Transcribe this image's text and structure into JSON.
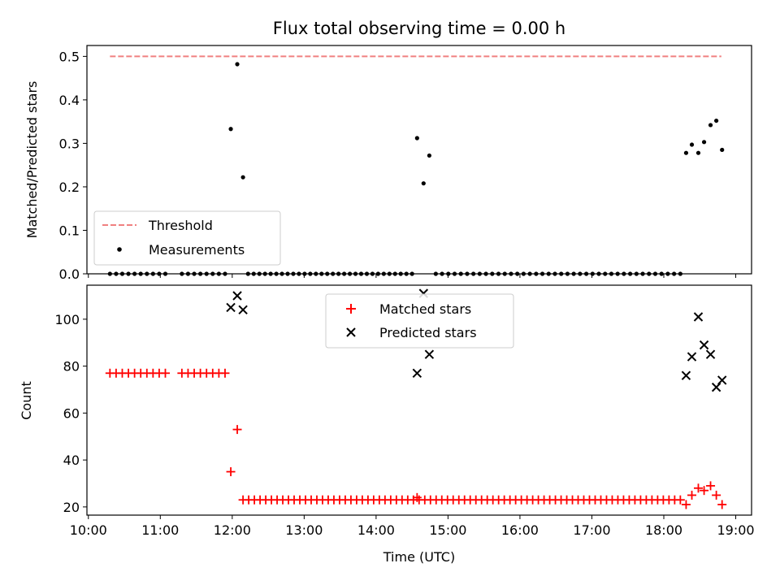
{
  "chart_data": [
    {
      "type": "scatter",
      "title": "Flux total observing time = 0.00 h",
      "ylabel": "Matched/Predicted stars",
      "xlabel": "",
      "xlim": [
        9.98,
        19.22
      ],
      "ylim": [
        0.0,
        0.525
      ],
      "x_ticks": [
        10,
        11,
        12,
        13,
        14,
        15,
        16,
        17,
        18,
        19
      ],
      "y_ticks": [
        0.0,
        0.1,
        0.2,
        0.3,
        0.4,
        0.5
      ],
      "y_tick_labels": [
        "0.0",
        "0.1",
        "0.2",
        "0.3",
        "0.4",
        "0.5"
      ],
      "legend": {
        "position": "lower-left",
        "entries": [
          "Threshold",
          "Measurements"
        ]
      },
      "series": [
        {
          "name": "Threshold",
          "kind": "dashed-line",
          "color": "#f08080",
          "x": [
            10.3,
            18.8
          ],
          "y": [
            0.5,
            0.5
          ]
        },
        {
          "name": "Measurements",
          "kind": "dot",
          "color": "#000000",
          "zero_runs": [
            [
              10.3,
              11.07,
              10
            ],
            [
              11.3,
              11.9,
              8
            ],
            [
              12.22,
              14.5,
              30
            ],
            [
              14.83,
              18.23,
              40
            ]
          ],
          "x": [
            11.98,
            12.07,
            12.15,
            14.57,
            14.66,
            14.74,
            18.31,
            18.39,
            18.48,
            18.56,
            18.65,
            18.73,
            18.81
          ],
          "y": [
            0.333,
            0.482,
            0.222,
            0.312,
            0.208,
            0.272,
            0.278,
            0.297,
            0.278,
            0.303,
            0.342,
            0.352,
            0.285
          ]
        }
      ]
    },
    {
      "type": "scatter",
      "title": "",
      "ylabel": "Count",
      "xlabel": "Time (UTC)",
      "xlim": [
        9.98,
        19.22
      ],
      "ylim": [
        16.5,
        114.5
      ],
      "x_ticks": [
        10,
        11,
        12,
        13,
        14,
        15,
        16,
        17,
        18,
        19
      ],
      "x_tick_labels": [
        "10:00",
        "11:00",
        "12:00",
        "13:00",
        "14:00",
        "15:00",
        "16:00",
        "17:00",
        "18:00",
        "19:00"
      ],
      "y_ticks": [
        20,
        40,
        60,
        80,
        100
      ],
      "y_tick_labels": [
        "20",
        "40",
        "60",
        "80",
        "100"
      ],
      "legend": {
        "position": "upper-center",
        "entries": [
          "Matched stars",
          "Predicted stars"
        ]
      },
      "series": [
        {
          "name": "Matched stars",
          "kind": "plus",
          "color": "#ff0000",
          "runs": [
            [
              10.3,
              11.07,
              10,
              77
            ],
            [
              11.3,
              11.9,
              8,
              77
            ],
            [
              12.15,
              18.23,
              78,
              23
            ]
          ],
          "x": [
            11.98,
            12.07,
            14.57,
            18.31,
            18.39,
            18.48,
            18.56,
            18.65,
            18.73,
            18.81
          ],
          "y": [
            35,
            53,
            24,
            21,
            25,
            28,
            27,
            29,
            25,
            21
          ]
        },
        {
          "name": "Predicted stars",
          "kind": "cross",
          "color": "#000000",
          "x": [
            11.98,
            12.07,
            12.15,
            14.57,
            14.66,
            14.74,
            18.31,
            18.39,
            18.48,
            18.56,
            18.65,
            18.73,
            18.81
          ],
          "y": [
            105,
            110,
            104,
            77,
            111,
            85,
            76,
            84,
            101,
            89,
            85,
            71,
            74
          ]
        }
      ]
    }
  ]
}
